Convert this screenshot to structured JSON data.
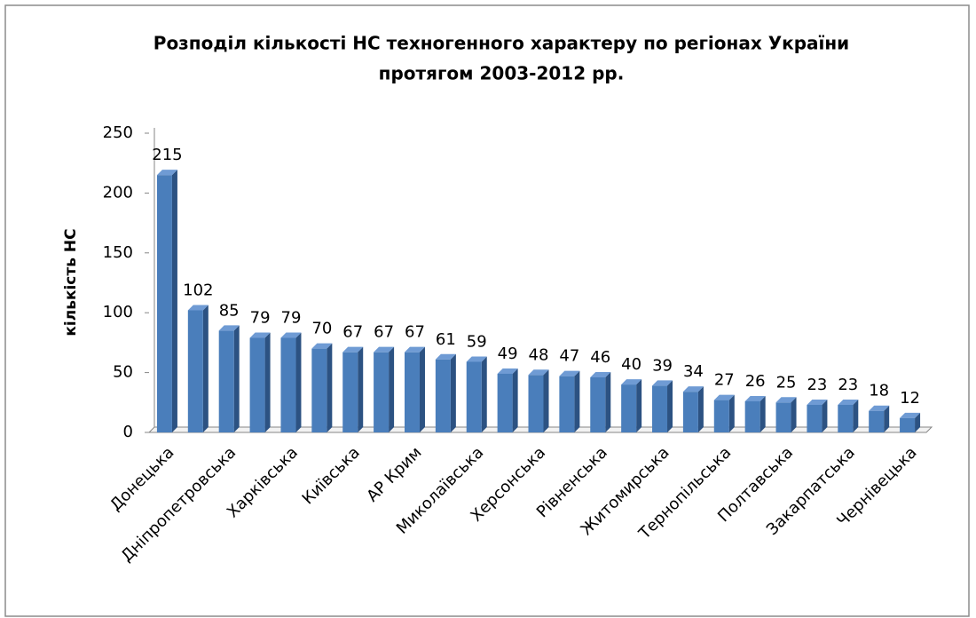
{
  "chart_data": {
    "type": "bar",
    "title": [
      "Розподіл кількості НС техногенного характеру по регіонах України",
      "протягом 2003-2012 рр."
    ],
    "y_label": "кількість НС",
    "categories": [
      "Донецька",
      null,
      "Дніпропетровська",
      null,
      "Харківська",
      null,
      "Київська",
      null,
      "АР Крим",
      null,
      "Миколаївська",
      null,
      "Херсонська",
      null,
      "Рівненська",
      null,
      "Житомирська",
      null,
      "Тернопільська",
      null,
      "Полтавська",
      null,
      "Закарпатська",
      null,
      "Чернівецька"
    ],
    "values": [
      215,
      102,
      85,
      79,
      79,
      70,
      67,
      67,
      67,
      61,
      59,
      49,
      48,
      47,
      46,
      40,
      39,
      34,
      27,
      26,
      25,
      23,
      23,
      18,
      12
    ],
    "color": "#4a7ebb",
    "ylim": [
      0,
      250
    ],
    "yticks": [
      0,
      50,
      100,
      150,
      200,
      250
    ],
    "grid": false
  }
}
